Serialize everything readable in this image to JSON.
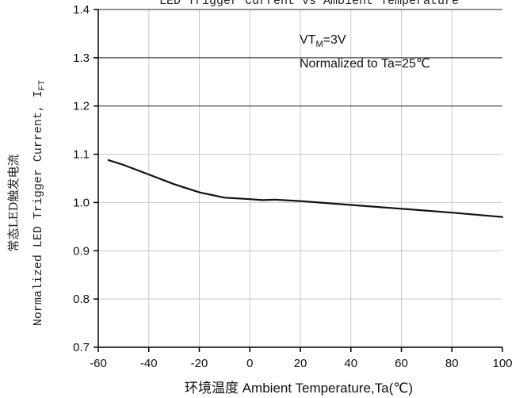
{
  "chart_data": {
    "type": "line",
    "title": "LED Trigger Current vs Ambient Temperature",
    "xlabel": "环境温度 Ambient Temperature,Ta(℃)",
    "ylabel_cn": "常态LED触发电流",
    "ylabel_en": "Normalized LED Trigger Current, I",
    "ylabel_sub": "FT",
    "xlim": [
      -60,
      100
    ],
    "ylim": [
      0.7,
      1.4
    ],
    "x_ticks": [
      -60,
      -40,
      -20,
      0,
      20,
      40,
      60,
      80,
      100
    ],
    "y_ticks": [
      "0.7",
      "0.8",
      "0.9",
      "1.0",
      "1.1",
      "1.2",
      "1.3",
      "1.4"
    ],
    "grid": true,
    "annotation": {
      "line1_main": "VT",
      "line1_sub": "M",
      "line1_rest": "=3V",
      "line2": "Normalized to Ta=25℃"
    },
    "series": [
      {
        "x": [
          -56,
          -50,
          -40,
          -30,
          -20,
          -10,
          0,
          5,
          10,
          20,
          40,
          60,
          80,
          100
        ],
        "y": [
          1.088,
          1.078,
          1.058,
          1.038,
          1.021,
          1.01,
          1.007,
          1.005,
          1.006,
          1.003,
          0.995,
          0.987,
          0.979,
          0.97
        ]
      }
    ]
  }
}
